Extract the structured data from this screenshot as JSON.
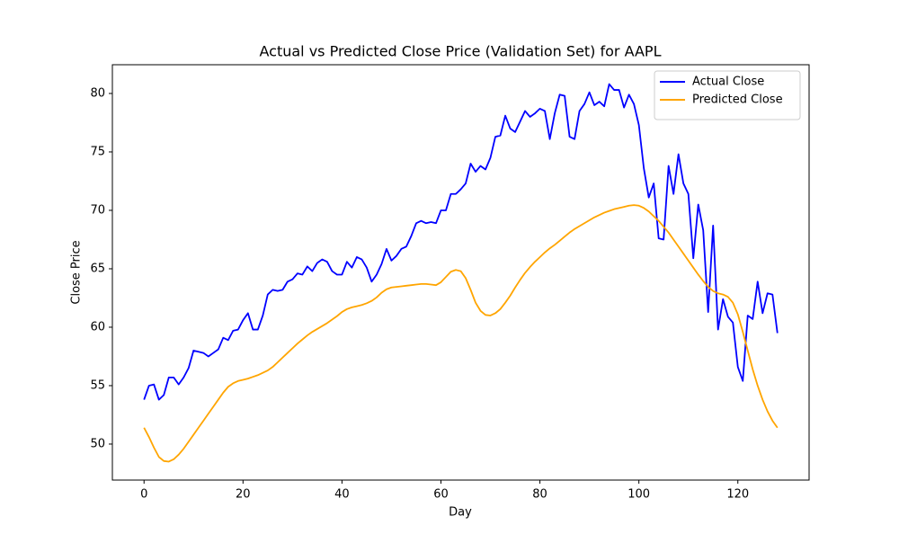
{
  "chart_data": {
    "type": "line",
    "title": "Actual vs Predicted Close Price (Validation Set) for AAPL",
    "x_label": "Day",
    "y_label": "Close Price",
    "x": [
      0,
      1,
      2,
      3,
      4,
      5,
      6,
      7,
      8,
      9,
      10,
      11,
      12,
      13,
      14,
      15,
      16,
      17,
      18,
      19,
      20,
      21,
      22,
      23,
      24,
      25,
      26,
      27,
      28,
      29,
      30,
      31,
      32,
      33,
      34,
      35,
      36,
      37,
      38,
      39,
      40,
      41,
      42,
      43,
      44,
      45,
      46,
      47,
      48,
      49,
      50,
      51,
      52,
      53,
      54,
      55,
      56,
      57,
      58,
      59,
      60,
      61,
      62,
      63,
      64,
      65,
      66,
      67,
      68,
      69,
      70,
      71,
      72,
      73,
      74,
      75,
      76,
      77,
      78,
      79,
      80,
      81,
      82,
      83,
      84,
      85,
      86,
      87,
      88,
      89,
      90,
      91,
      92,
      93,
      94,
      95,
      96,
      97,
      98,
      99,
      100,
      101,
      102,
      103,
      104,
      105,
      106,
      107,
      108,
      109,
      110,
      111,
      112,
      113,
      114,
      115,
      116,
      117,
      118,
      119,
      120,
      121,
      122,
      123,
      124,
      125,
      126,
      127,
      128
    ],
    "series": [
      {
        "name": "Actual Close",
        "color": "#0000ff",
        "values": [
          53.8,
          55.0,
          55.1,
          53.8,
          54.2,
          55.7,
          55.7,
          55.1,
          55.7,
          56.5,
          58.0,
          57.9,
          57.8,
          57.5,
          57.8,
          58.1,
          59.1,
          58.9,
          59.7,
          59.8,
          60.6,
          61.2,
          59.8,
          59.8,
          61.0,
          62.8,
          63.2,
          63.1,
          63.2,
          63.9,
          64.1,
          64.6,
          64.5,
          65.2,
          64.8,
          65.5,
          65.8,
          65.6,
          64.8,
          64.5,
          64.5,
          65.6,
          65.1,
          66.0,
          65.8,
          65.1,
          63.9,
          64.5,
          65.4,
          66.7,
          65.7,
          66.1,
          66.7,
          66.9,
          67.8,
          68.9,
          69.1,
          68.9,
          69.0,
          68.9,
          70.0,
          70.0,
          71.4,
          71.4,
          71.8,
          72.3,
          74.0,
          73.3,
          73.8,
          73.5,
          74.5,
          76.3,
          76.4,
          78.1,
          77.0,
          76.7,
          77.6,
          78.5,
          78.0,
          78.3,
          78.7,
          78.5,
          76.1,
          78.3,
          79.9,
          79.8,
          76.3,
          76.1,
          78.5,
          79.1,
          80.1,
          79.0,
          79.3,
          78.9,
          80.8,
          80.3,
          80.3,
          78.8,
          79.9,
          79.1,
          77.3,
          73.6,
          71.1,
          72.3,
          67.6,
          67.5,
          73.8,
          71.4,
          74.8,
          72.3,
          71.4,
          65.9,
          70.5,
          68.3,
          61.3,
          68.7,
          59.8,
          62.4,
          60.9,
          60.4,
          56.6,
          55.4,
          61.0,
          60.7,
          63.9,
          61.2,
          62.9,
          62.8,
          59.5
        ]
      },
      {
        "name": "Predicted Close",
        "color": "#ffa500",
        "values": [
          51.4,
          50.6,
          49.7,
          48.9,
          48.55,
          48.5,
          48.7,
          49.1,
          49.6,
          50.2,
          50.8,
          51.4,
          52.0,
          52.6,
          53.2,
          53.8,
          54.4,
          54.9,
          55.2,
          55.4,
          55.5,
          55.6,
          55.75,
          55.9,
          56.1,
          56.3,
          56.6,
          57.0,
          57.4,
          57.8,
          58.2,
          58.6,
          58.95,
          59.3,
          59.6,
          59.85,
          60.1,
          60.35,
          60.65,
          60.95,
          61.3,
          61.55,
          61.7,
          61.8,
          61.9,
          62.05,
          62.25,
          62.55,
          62.95,
          63.25,
          63.4,
          63.45,
          63.5,
          63.55,
          63.6,
          63.65,
          63.7,
          63.7,
          63.65,
          63.6,
          63.85,
          64.3,
          64.75,
          64.9,
          64.8,
          64.2,
          63.2,
          62.1,
          61.4,
          61.05,
          61.0,
          61.2,
          61.55,
          62.1,
          62.7,
          63.4,
          64.05,
          64.65,
          65.15,
          65.6,
          66.0,
          66.4,
          66.75,
          67.05,
          67.4,
          67.75,
          68.1,
          68.4,
          68.65,
          68.9,
          69.15,
          69.4,
          69.6,
          69.8,
          69.95,
          70.1,
          70.2,
          70.3,
          70.4,
          70.45,
          70.4,
          70.2,
          69.9,
          69.5,
          69.1,
          68.6,
          68.1,
          67.5,
          66.9,
          66.3,
          65.7,
          65.1,
          64.5,
          63.95,
          63.45,
          63.1,
          62.9,
          62.8,
          62.6,
          62.1,
          61.1,
          59.6,
          58.0,
          56.4,
          55.0,
          53.8,
          52.8,
          52.0,
          51.4
        ]
      }
    ],
    "xlim": [
      -6.4,
      134.4
    ],
    "ylim": [
      46.92,
      82.46
    ],
    "xticks": [
      0,
      20,
      40,
      60,
      80,
      100,
      120
    ],
    "yticks": [
      50,
      55,
      60,
      65,
      70,
      75,
      80
    ],
    "legend": "upper right"
  }
}
